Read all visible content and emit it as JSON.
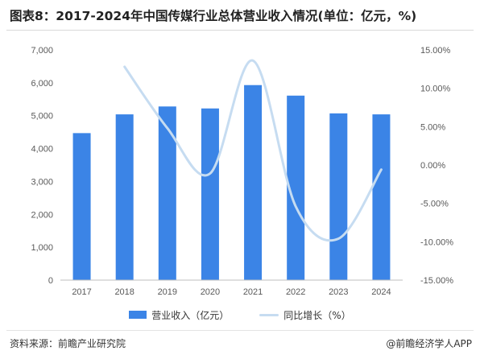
{
  "title": "图表8：2017-2024年中国传媒行业总体营业收入情况(单位：亿元，%)",
  "source": "资料来源：前瞻产业研究院",
  "credit": "@前瞻经济学人APP",
  "chart_data": {
    "type": "bar+line",
    "title": "图表8：2017-2024年中国传媒行业总体营业收入情况(单位：亿元，%)",
    "categories": [
      "2017",
      "2018",
      "2019",
      "2020",
      "2021",
      "2022",
      "2023",
      "2024"
    ],
    "series": [
      {
        "name": "营业收入（亿元）",
        "type": "bar",
        "axis": "left",
        "color": "#3b84e6",
        "values": [
          4470,
          5040,
          5280,
          5220,
          5930,
          5610,
          5070,
          5040
        ]
      },
      {
        "name": "同比增长（%）",
        "type": "line",
        "axis": "right",
        "color": "#c6dcf1",
        "smooth": true,
        "values": [
          null,
          12.8,
          4.8,
          -1.1,
          13.6,
          -5.4,
          -9.6,
          -0.6
        ]
      }
    ],
    "y_left": {
      "ylim": [
        0,
        7000
      ],
      "ticks": [
        0,
        1000,
        2000,
        3000,
        4000,
        5000,
        6000,
        7000
      ],
      "tick_labels": [
        "0",
        "1,000",
        "2,000",
        "3,000",
        "4,000",
        "5,000",
        "6,000",
        "7,000"
      ]
    },
    "y_right": {
      "ylim": [
        -15,
        15
      ],
      "ticks": [
        -15,
        -10,
        -5,
        0,
        5,
        10,
        15
      ],
      "tick_labels": [
        "-15.00%",
        "-10.00%",
        "-5.00%",
        "0.00%",
        "5.00%",
        "10.00%",
        "15.00%"
      ]
    },
    "grid": false,
    "legend_position": "bottom"
  }
}
